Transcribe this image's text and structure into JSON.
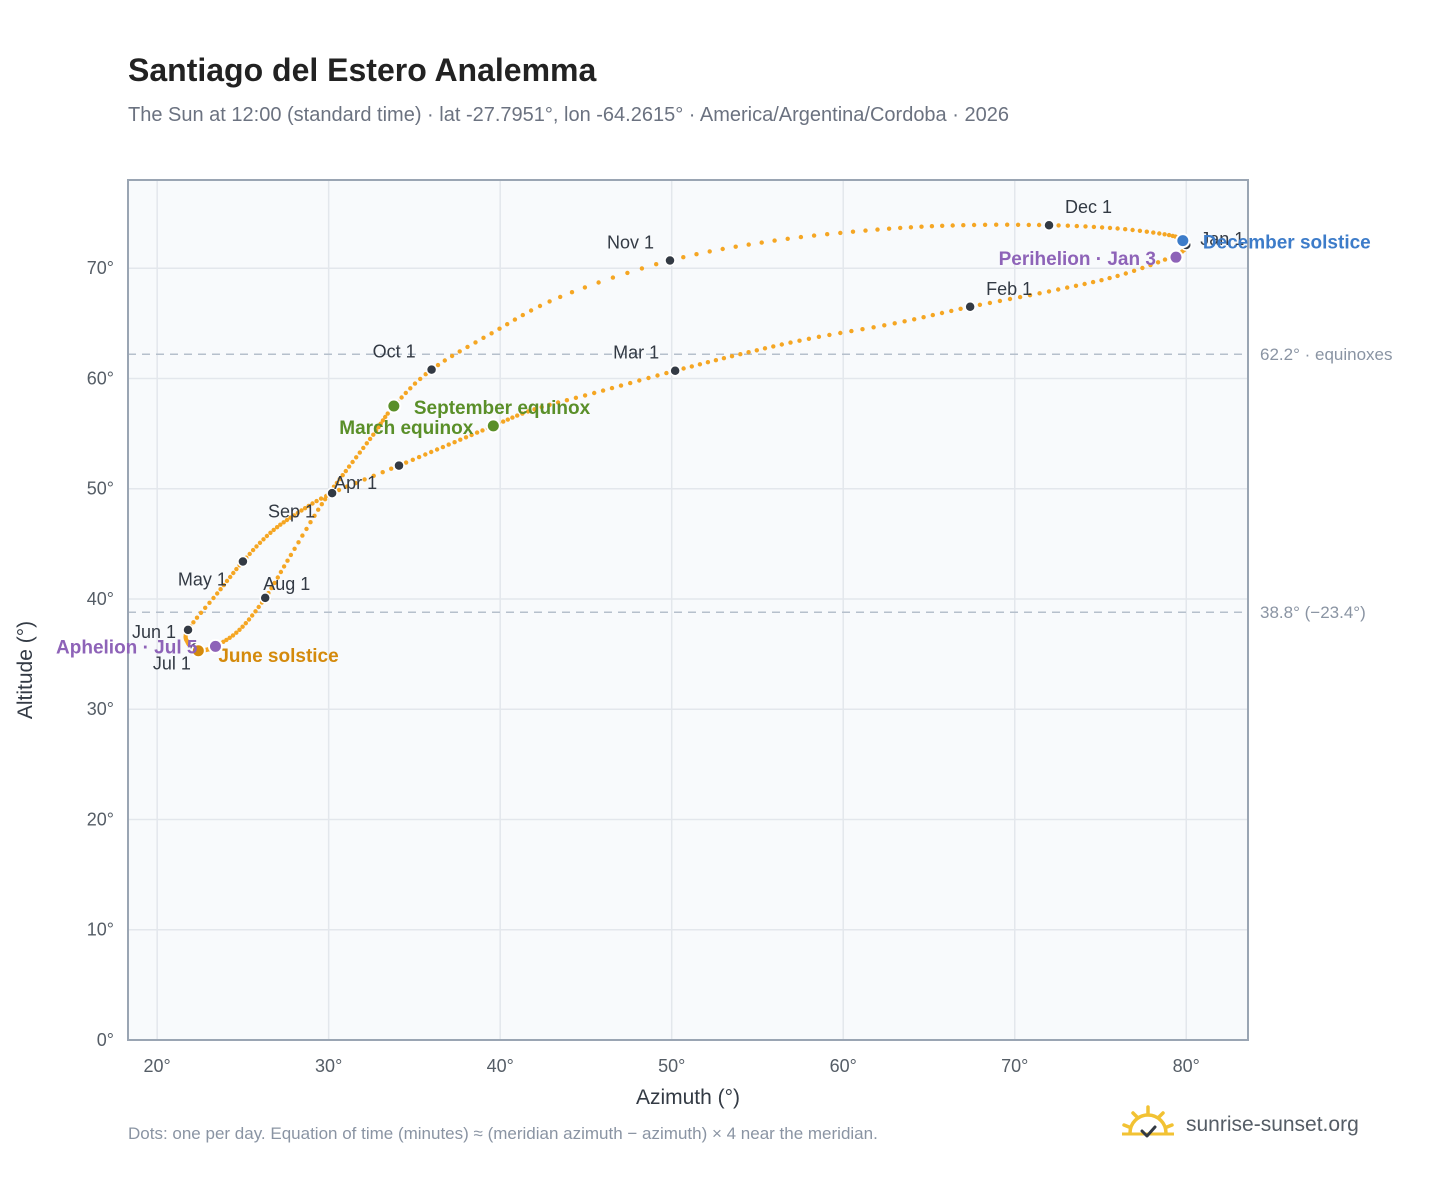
{
  "header": {
    "title": "Santiago del Estero Analemma",
    "subtitle": "The Sun at 12:00 (standard time) · lat -27.7951°, lon -64.2615° · America/Argentina/Cordoba · 2026"
  },
  "footer": {
    "note": "Dots: one per day. Equation of time (minutes) ≈ (meridian azimuth − azimuth) × 4 near the meridian.",
    "brand": "sunrise-sunset.org",
    "brand_icon": "sun-logo-icon"
  },
  "colors": {
    "curve": "#f5a623",
    "month_marker": "#333a44",
    "equinox": "#5a8f29",
    "june_solstice": "#d48a0c",
    "december_solstice": "#3d7cc9",
    "apsis": "#8e63b8",
    "grid": "#e3e7ec",
    "reference_line": "#b6c0cc",
    "plot_background": "#f8fafc"
  },
  "chart_data": {
    "type": "scatter",
    "title": "Santiago del Estero Analemma",
    "xlabel": "Azimuth (°)",
    "ylabel": "Altitude (°)",
    "xlim": [
      18.3,
      83.6
    ],
    "ylim": [
      0,
      78
    ],
    "x_ticks": [
      20,
      30,
      40,
      50,
      60,
      70,
      80
    ],
    "x_tick_labels": [
      "20°",
      "30°",
      "40°",
      "50°",
      "60°",
      "70°",
      "80°"
    ],
    "y_ticks": [
      0,
      10,
      20,
      30,
      40,
      50,
      60,
      70
    ],
    "y_tick_labels": [
      "0°",
      "10°",
      "20°",
      "30°",
      "40°",
      "50°",
      "60°",
      "70°"
    ],
    "grid": true,
    "reference_lines": [
      {
        "y": 62.2,
        "label": "62.2° · equinoxes"
      },
      {
        "y": 38.8,
        "label": "38.8° (−23.4°)"
      }
    ],
    "daily_path": {
      "name": "Daily Sun position",
      "points": [
        [
          79.8,
          72.5
        ],
        [
          80.0,
          72.1
        ],
        [
          79.4,
          71.2
        ],
        [
          76.0,
          69.3
        ],
        [
          72.0,
          67.9
        ],
        [
          67.4,
          66.5
        ],
        [
          63.0,
          65.0
        ],
        [
          58.0,
          63.6
        ],
        [
          54.0,
          62.2
        ],
        [
          50.2,
          60.7
        ],
        [
          46.0,
          58.9
        ],
        [
          42.0,
          57.2
        ],
        [
          39.6,
          55.7
        ],
        [
          37.0,
          54.0
        ],
        [
          34.1,
          52.1
        ],
        [
          30.2,
          49.6
        ],
        [
          28.2,
          47.8
        ],
        [
          26.6,
          46.0
        ],
        [
          25.0,
          43.4
        ],
        [
          23.5,
          40.5
        ],
        [
          21.8,
          37.2
        ],
        [
          21.8,
          36.0
        ],
        [
          22.2,
          35.6
        ],
        [
          22.4,
          35.3
        ],
        [
          22.9,
          35.4
        ],
        [
          23.4,
          35.7
        ],
        [
          24.8,
          37.2
        ],
        [
          26.3,
          40.1
        ],
        [
          27.8,
          44.0
        ],
        [
          29.6,
          48.6
        ],
        [
          31.0,
          51.6
        ],
        [
          32.6,
          54.9
        ],
        [
          33.8,
          57.5
        ],
        [
          36.0,
          60.8
        ],
        [
          39.5,
          64.1
        ],
        [
          43.5,
          67.4
        ],
        [
          49.9,
          70.7
        ],
        [
          56.0,
          72.5
        ],
        [
          62.0,
          73.5
        ],
        [
          67.0,
          73.9
        ],
        [
          72.0,
          73.9
        ],
        [
          76.0,
          73.6
        ],
        [
          79.0,
          73.0
        ],
        [
          79.8,
          72.5
        ]
      ]
    },
    "month_markers": [
      {
        "label": "Jan 1",
        "x": 80.0,
        "y": 72.1
      },
      {
        "label": "Feb 1",
        "x": 67.4,
        "y": 66.5
      },
      {
        "label": "Mar 1",
        "x": 50.2,
        "y": 60.7
      },
      {
        "label": "Apr 1",
        "x": 30.2,
        "y": 49.6
      },
      {
        "label": "May 1",
        "x": 25.0,
        "y": 43.4
      },
      {
        "label": "Jun 1",
        "x": 21.8,
        "y": 37.2
      },
      {
        "label": "Jul 1",
        "x": 22.2,
        "y": 35.6
      },
      {
        "label": "Aug 1",
        "x": 26.3,
        "y": 40.1
      },
      {
        "label": "Sep 1",
        "x": 34.1,
        "y": 52.1
      },
      {
        "label": "Oct 1",
        "x": 36.0,
        "y": 60.8
      },
      {
        "label": "Nov 1",
        "x": 49.9,
        "y": 70.7
      },
      {
        "label": "Dec 1",
        "x": 72.0,
        "y": 73.9
      }
    ],
    "events": [
      {
        "label": "March equinox",
        "x": 39.6,
        "y": 55.7,
        "kind": "equinox"
      },
      {
        "label": "September equinox",
        "x": 33.8,
        "y": 57.5,
        "kind": "equinox"
      },
      {
        "label": "June solstice",
        "x": 22.4,
        "y": 35.3,
        "kind": "june_solstice"
      },
      {
        "label": "December solstice",
        "x": 79.8,
        "y": 72.5,
        "kind": "december_solstice"
      },
      {
        "label": "Aphelion · Jul 5",
        "x": 23.4,
        "y": 35.7,
        "kind": "apsis"
      },
      {
        "label": "Perihelion · Jan 3",
        "x": 79.4,
        "y": 71.0,
        "kind": "apsis"
      }
    ]
  }
}
